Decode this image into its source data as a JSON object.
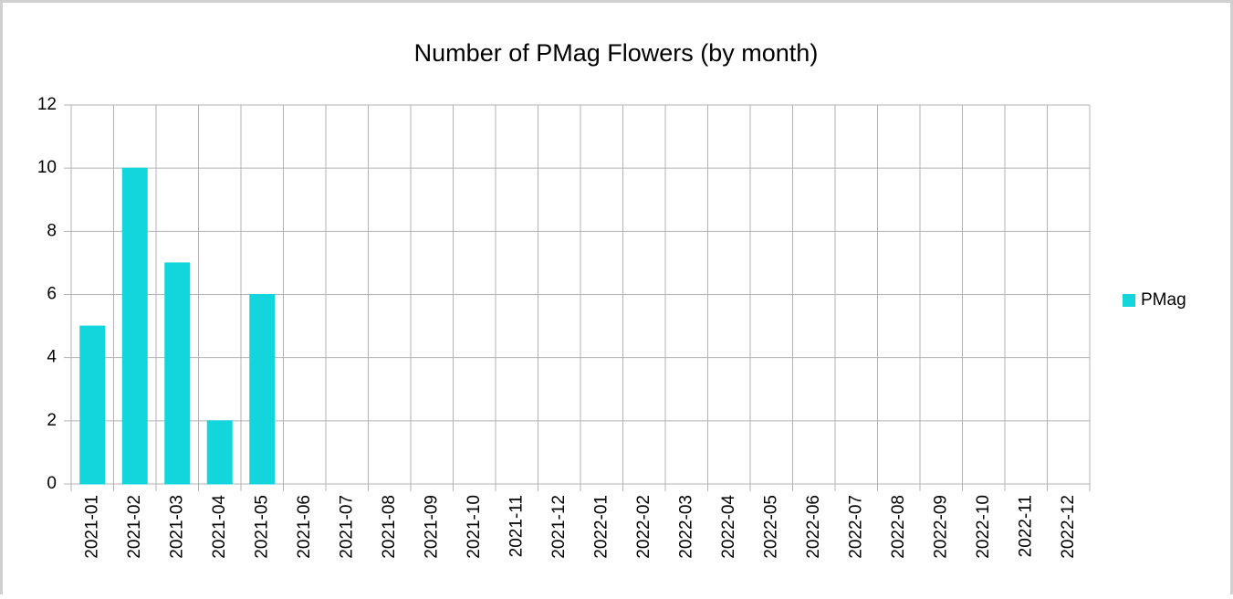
{
  "chart_data": {
    "type": "bar",
    "title": "Number of PMag Flowers (by month)",
    "categories": [
      "2021-01",
      "2021-02",
      "2021-03",
      "2021-04",
      "2021-05",
      "2021-06",
      "2021-07",
      "2021-08",
      "2021-09",
      "2021-10",
      "2021-11",
      "2021-12",
      "2022-01",
      "2022-02",
      "2022-03",
      "2022-04",
      "2022-05",
      "2022-06",
      "2022-07",
      "2022-08",
      "2022-09",
      "2022-10",
      "2022-11",
      "2022-12"
    ],
    "series": [
      {
        "name": "PMag",
        "color": "#13d6dc",
        "values": [
          5,
          10,
          7,
          2,
          6,
          0,
          0,
          0,
          0,
          0,
          0,
          0,
          0,
          0,
          0,
          0,
          0,
          0,
          0,
          0,
          0,
          0,
          0,
          0
        ]
      }
    ],
    "ylim": [
      0,
      12
    ],
    "yticks": [
      0,
      2,
      4,
      6,
      8,
      10,
      12
    ],
    "grid": true,
    "legend": "right"
  }
}
